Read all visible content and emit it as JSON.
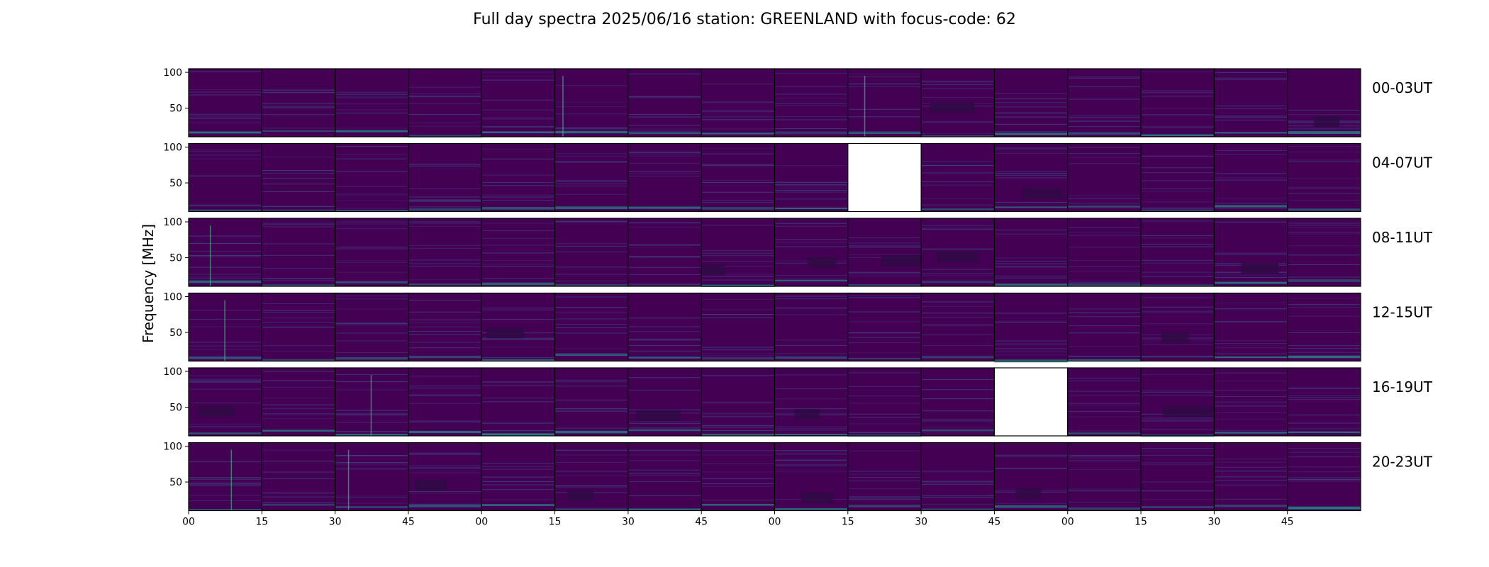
{
  "chart_data": {
    "type": "heatmap",
    "title": "Full day spectra 2025/06/16 station: GREENLAND with focus-code: 62",
    "ylabel": "Frequency [MHz]",
    "ylim": [
      10,
      105
    ],
    "yticks": [
      50,
      100
    ],
    "xticks": [
      "00",
      "15",
      "30",
      "45",
      "00",
      "15",
      "30",
      "45",
      "00",
      "15",
      "30",
      "45",
      "00",
      "15",
      "30",
      "45"
    ],
    "panels_per_row": 16,
    "panel_minutes": 15,
    "colormap": "viridis",
    "rows": [
      {
        "label": "00-03UT",
        "missing": []
      },
      {
        "label": "04-07UT",
        "missing": [
          9
        ]
      },
      {
        "label": "08-11UT",
        "missing": []
      },
      {
        "label": "12-15UT",
        "missing": []
      },
      {
        "label": "16-19UT",
        "missing": [
          11
        ]
      },
      {
        "label": "20-23UT",
        "missing": []
      }
    ]
  },
  "colors": {
    "background": "#440154",
    "line": "#3b528b",
    "bright": "#21918c",
    "hot": "#35b779",
    "dark": "#2f0a44",
    "frame": "#000000"
  }
}
